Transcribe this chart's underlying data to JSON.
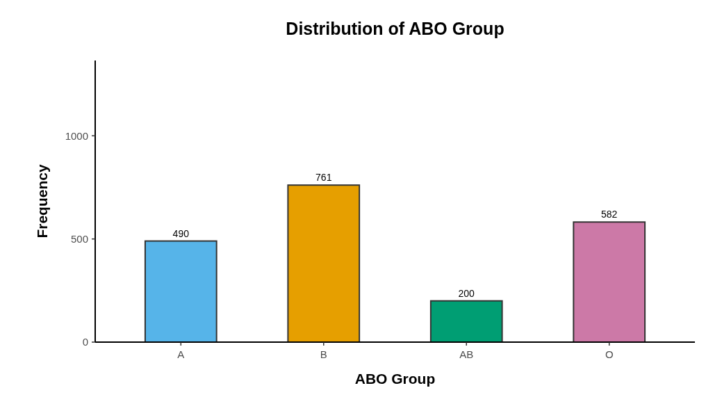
{
  "chart_data": {
    "type": "bar",
    "title": "Distribution of ABO Group",
    "xlabel": "ABO Group",
    "ylabel": "Frequency",
    "categories": [
      "A",
      "B",
      "AB",
      "O"
    ],
    "values": [
      490,
      761,
      200,
      582
    ],
    "colors": [
      "#56b4e9",
      "#e69f00",
      "#009e73",
      "#cc79a7"
    ],
    "ylim": [
      0,
      1365
    ],
    "yticks": [
      0,
      500,
      1000
    ],
    "data_labels": true
  }
}
